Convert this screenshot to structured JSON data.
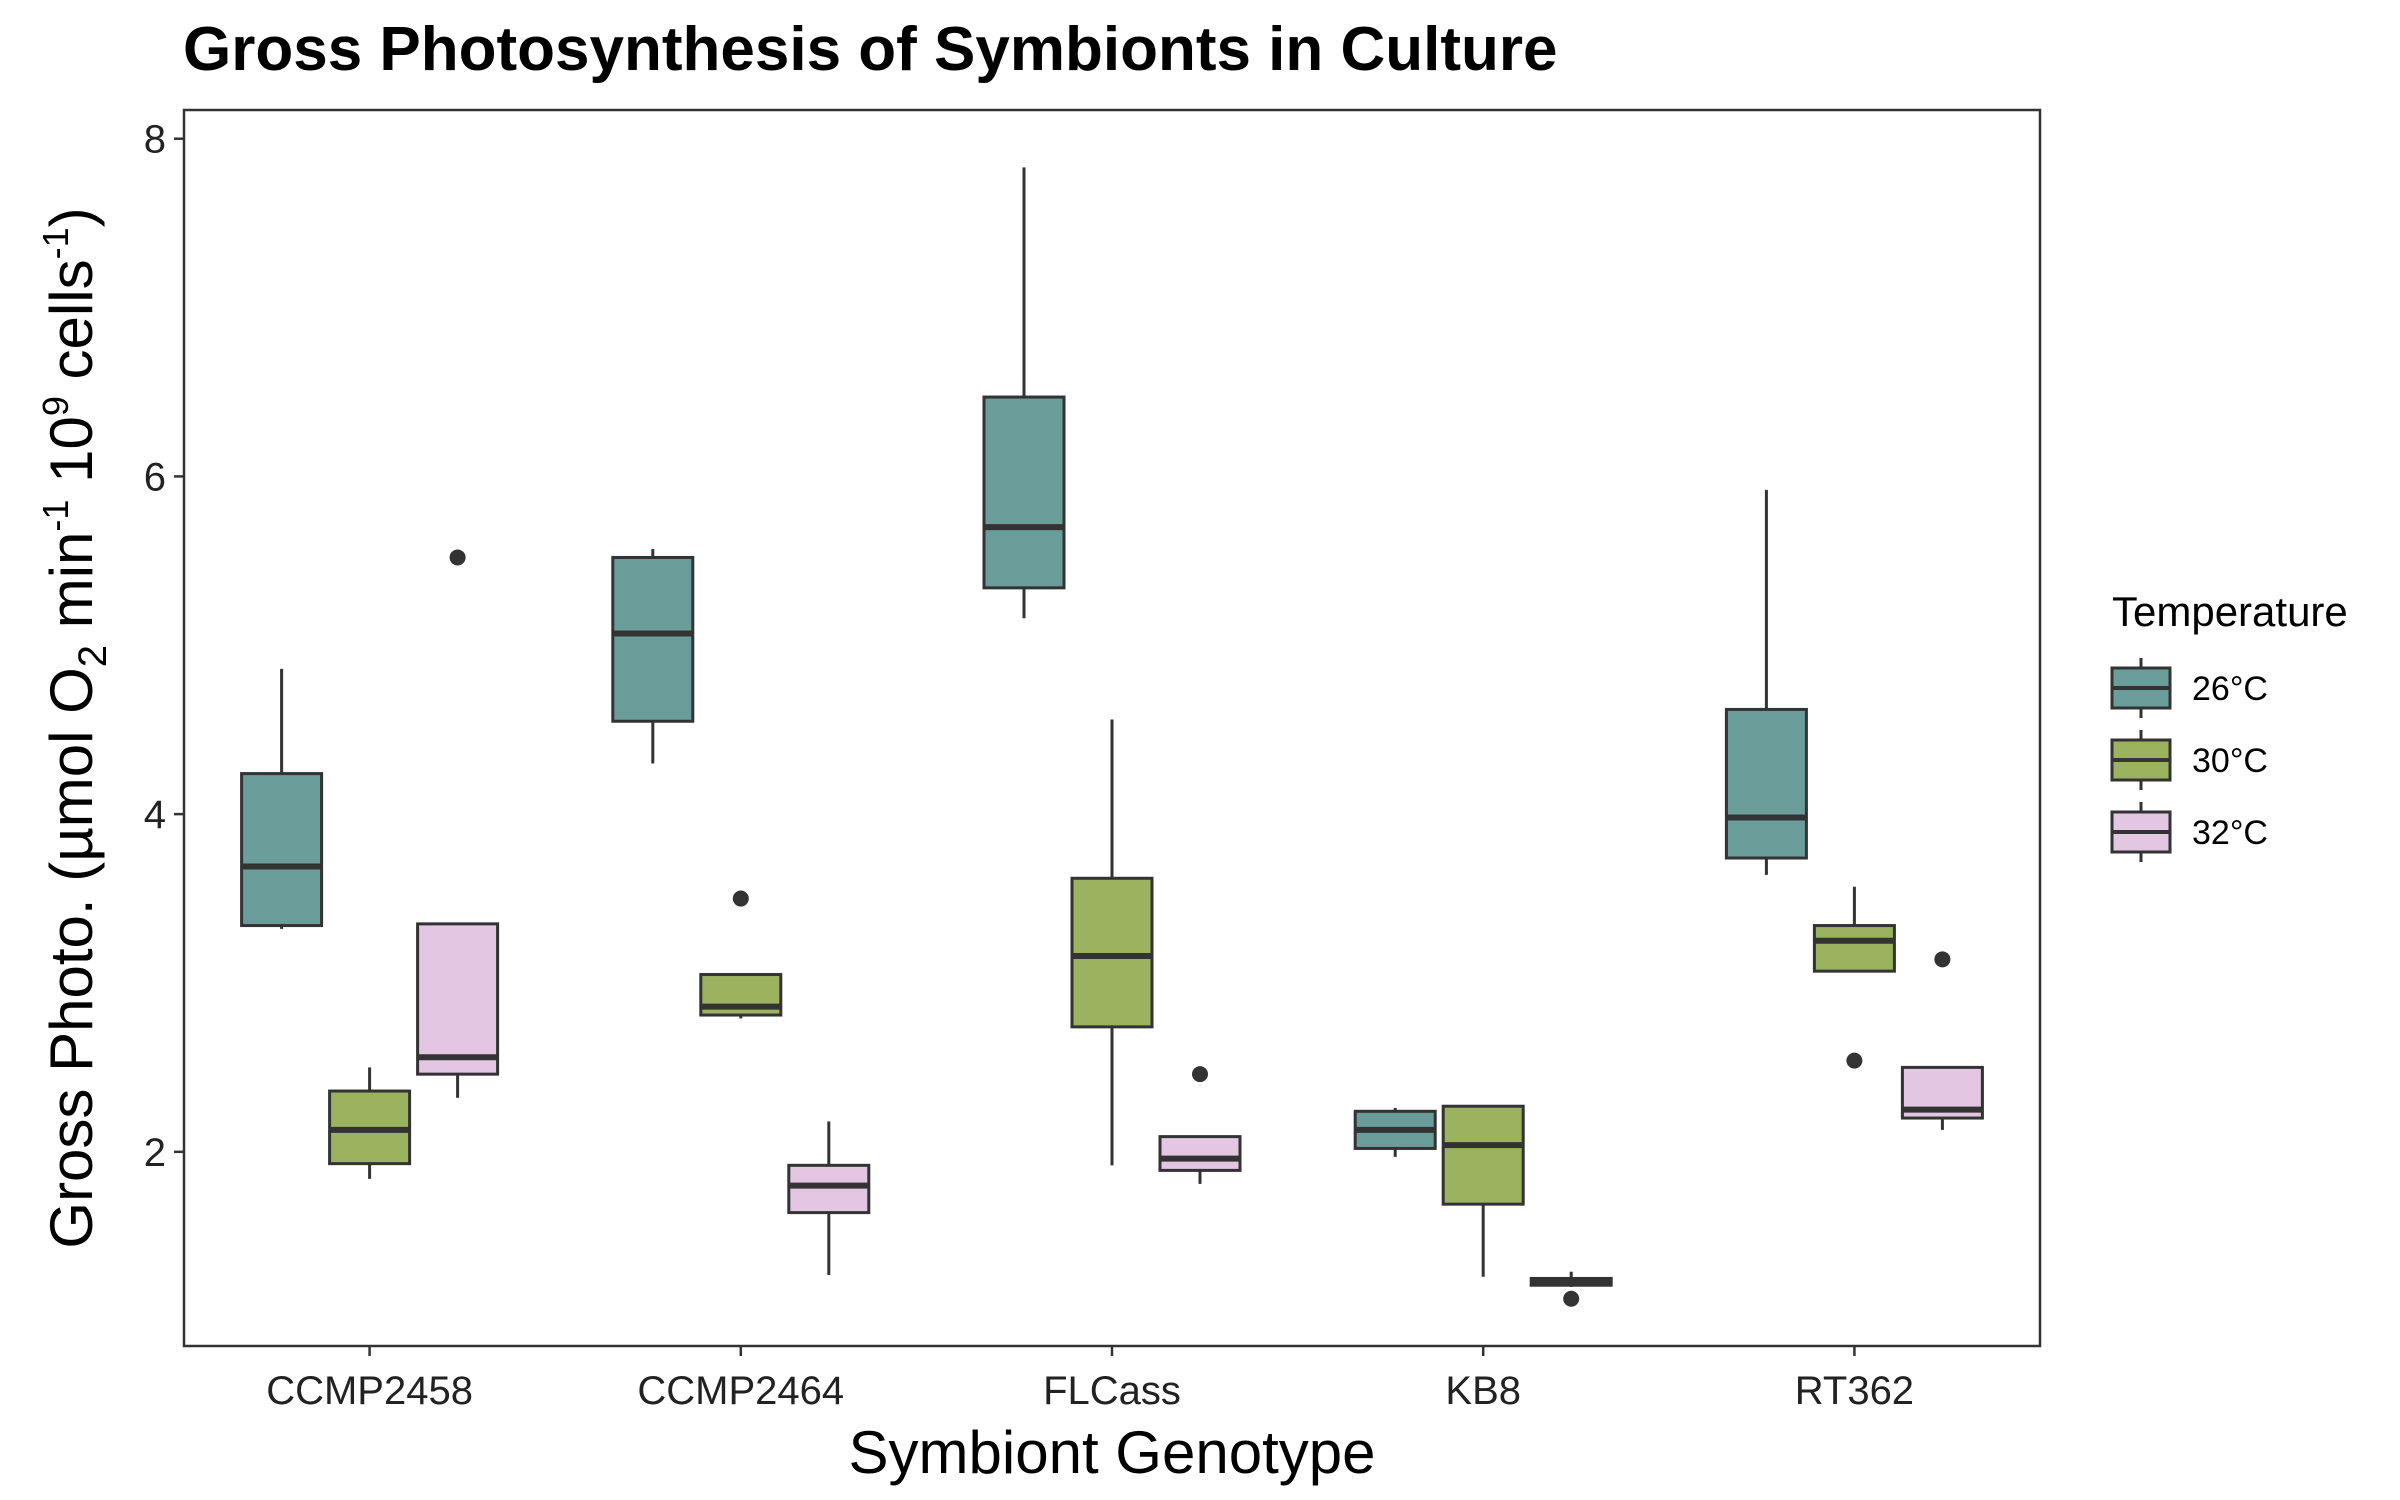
{
  "chart_data": {
    "type": "boxplot",
    "title": "Gross Photosynthesis of Symbionts in Culture",
    "xlabel": "Symbiont Genotype",
    "ylabel_parts": {
      "prefix": "Gross Photo. (µmol O",
      "sub": "2",
      "mid1": " min",
      "sup1": "-1",
      "mid2": " 10",
      "sup2": "9",
      "mid3": " cells",
      "sup3": "-1",
      "suffix": ")"
    },
    "categories": [
      "CCMP2458",
      "CCMP2464",
      "FLCass",
      "KB8",
      "RT362"
    ],
    "ylim": [
      0.85,
      8.17
    ],
    "yticks": [
      2,
      4,
      6,
      8
    ],
    "grid": false,
    "legend": {
      "title": "Temperature",
      "position": "right",
      "entries": [
        "26°C",
        "30°C",
        "32°C"
      ]
    },
    "colors": {
      "26°C": "#6a9c9a",
      "30°C": "#9bb35e",
      "32°C": "#e2c6e2",
      "outline": "#333333"
    },
    "series": [
      {
        "name": "26°C",
        "boxes": [
          {
            "min": 3.32,
            "q1": 3.34,
            "median": 3.69,
            "q3": 4.24,
            "max": 4.86,
            "outliers": []
          },
          {
            "min": 4.3,
            "q1": 4.55,
            "median": 5.07,
            "q3": 5.52,
            "max": 5.57,
            "outliers": []
          },
          {
            "min": 5.16,
            "q1": 5.34,
            "median": 5.7,
            "q3": 6.47,
            "max": 7.83,
            "outliers": []
          },
          {
            "min": 1.97,
            "q1": 2.02,
            "median": 2.13,
            "q3": 2.24,
            "max": 2.26,
            "outliers": []
          },
          {
            "min": 3.64,
            "q1": 3.74,
            "median": 3.98,
            "q3": 4.62,
            "max": 5.92,
            "outliers": []
          }
        ]
      },
      {
        "name": "30°C",
        "boxes": [
          {
            "min": 1.84,
            "q1": 1.93,
            "median": 2.13,
            "q3": 2.36,
            "max": 2.5,
            "outliers": []
          },
          {
            "min": 2.79,
            "q1": 2.81,
            "median": 2.86,
            "q3": 3.05,
            "max": 3.05,
            "outliers": [
              3.5
            ]
          },
          {
            "min": 1.92,
            "q1": 2.74,
            "median": 3.16,
            "q3": 3.62,
            "max": 4.56,
            "outliers": []
          },
          {
            "min": 1.26,
            "q1": 1.69,
            "median": 2.04,
            "q3": 2.27,
            "max": 2.27,
            "outliers": []
          },
          {
            "min": 3.07,
            "q1": 3.07,
            "median": 3.25,
            "q3": 3.34,
            "max": 3.57,
            "outliers": [
              2.54
            ]
          }
        ]
      },
      {
        "name": "32°C",
        "boxes": [
          {
            "min": 2.32,
            "q1": 2.46,
            "median": 2.56,
            "q3": 3.35,
            "max": 3.35,
            "outliers": [
              5.52
            ]
          },
          {
            "min": 1.27,
            "q1": 1.64,
            "median": 1.8,
            "q3": 1.92,
            "max": 2.18,
            "outliers": []
          },
          {
            "min": 1.81,
            "q1": 1.89,
            "median": 1.96,
            "q3": 2.09,
            "max": 2.09,
            "outliers": [
              2.46
            ]
          },
          {
            "min": 1.2,
            "q1": 1.21,
            "median": 1.23,
            "q3": 1.25,
            "max": 1.29,
            "outliers": [
              1.13
            ]
          },
          {
            "min": 2.13,
            "q1": 2.2,
            "median": 2.25,
            "q3": 2.5,
            "max": 2.5,
            "outliers": [
              3.14
            ]
          }
        ]
      }
    ]
  }
}
